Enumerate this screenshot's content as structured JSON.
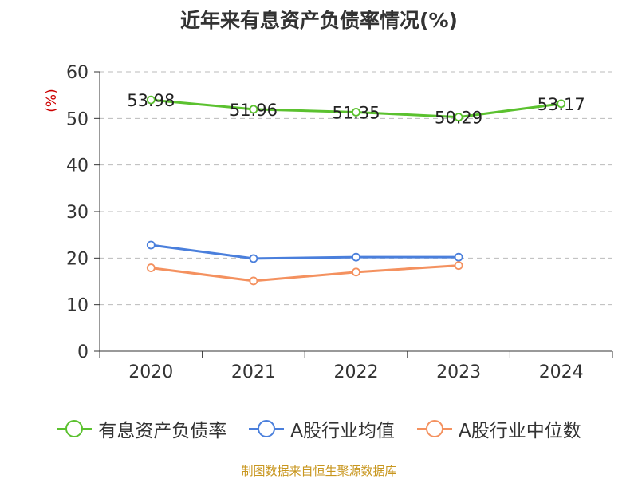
{
  "title": "近年来有息资产负债率情况(%)",
  "source": "制图数据来自恒生聚源数据库",
  "colors": {
    "series": [
      "#5bc12f",
      "#4a7fdc",
      "#f4915f"
    ],
    "axis": "#333333",
    "grid": "#bbbbbb",
    "unit": "#cc0000"
  },
  "chart_data": {
    "type": "line",
    "title": "近年来有息资产负债率情况(%)",
    "ylabel": "(%)",
    "xlabel": "",
    "categories": [
      "2020",
      "2021",
      "2022",
      "2023",
      "2024"
    ],
    "ylim": [
      0,
      60
    ],
    "yticks": [
      "0",
      "10",
      "20",
      "30",
      "40",
      "50",
      "60"
    ],
    "grid": true,
    "legend_position": "bottom",
    "series": [
      {
        "name": "有息资产负债率",
        "values": [
          53.98,
          51.96,
          51.35,
          50.29,
          53.17
        ],
        "labels": [
          "53.98",
          "51.96",
          "51.35",
          "50.29",
          "53.17"
        ]
      },
      {
        "name": "A股行业均值",
        "values": [
          22.8,
          19.9,
          20.2,
          20.2,
          null
        ]
      },
      {
        "name": "A股行业中位数",
        "values": [
          17.9,
          15.1,
          17.0,
          18.4,
          null
        ]
      }
    ]
  }
}
